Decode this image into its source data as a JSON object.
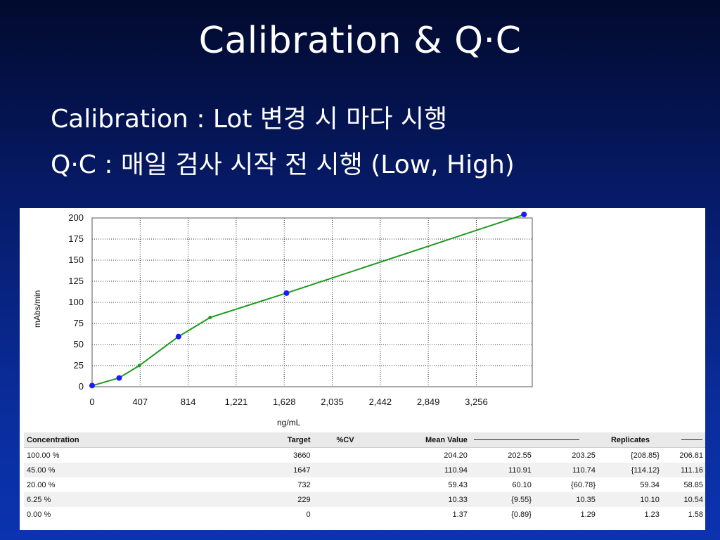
{
  "slide": {
    "title": "Calibration & Q·C",
    "bullets": [
      "Calibration : Lot 변경 시 마다 시행",
      "Q·C : 매일 검사 시작 전 시행 (Low, High)"
    ]
  },
  "chart_data": {
    "type": "scatter",
    "xlabel": "ng/mL",
    "ylabel": "mAbs/min",
    "xlim": [
      0,
      3730
    ],
    "ylim": [
      0,
      200
    ],
    "x_ticks": [
      "0",
      "407",
      "814",
      "1,221",
      "1,628",
      "2,035",
      "2,442",
      "2,849",
      "3,256"
    ],
    "x_tick_values": [
      0,
      407,
      814,
      1221,
      1628,
      2035,
      2442,
      2849,
      3256
    ],
    "y_ticks": [
      "0",
      "25",
      "50",
      "75",
      "100",
      "125",
      "150",
      "175",
      "200"
    ],
    "y_tick_values": [
      0,
      25,
      50,
      75,
      100,
      125,
      150,
      175,
      200
    ],
    "grid": true,
    "series": [
      {
        "color": "#1a1aff",
        "marker": "circle",
        "x": [
          0,
          229,
          732,
          1647,
          3660
        ],
        "y": [
          1.37,
          10.33,
          59.43,
          110.94,
          204.2
        ]
      },
      {
        "color": "#1e9a1e",
        "marker": "line",
        "x": [
          0,
          229,
          400,
          732,
          1000,
          1647,
          3660
        ],
        "y": [
          1.2,
          10.5,
          25,
          59.5,
          82,
          111,
          204
        ]
      }
    ]
  },
  "table": {
    "headers": [
      "Concentration",
      "Target",
      "%CV",
      "Mean Value",
      "Replicates"
    ],
    "rows": [
      {
        "concentration": "100.00 %",
        "target": "3660",
        "cv": "",
        "mean": "204.20",
        "replicates": [
          "202.55",
          "203.25",
          "{208.85}",
          "206.81"
        ]
      },
      {
        "concentration": "45.00 %",
        "target": "1647",
        "cv": "",
        "mean": "110.94",
        "replicates": [
          "110.91",
          "110.74",
          "{114.12}",
          "111.16"
        ]
      },
      {
        "concentration": "20.00 %",
        "target": "732",
        "cv": "",
        "mean": "59.43",
        "replicates": [
          "60.10",
          "{60.78}",
          "59.34",
          "58.85"
        ]
      },
      {
        "concentration": "6.25 %",
        "target": "229",
        "cv": "",
        "mean": "10.33",
        "replicates": [
          "{9.55}",
          "10.35",
          "10.10",
          "10.54"
        ]
      },
      {
        "concentration": "0.00 %",
        "target": "0",
        "cv": "",
        "mean": "1.37",
        "replicates": [
          "{0.89}",
          "1.29",
          "1.23",
          "1.58"
        ]
      }
    ]
  },
  "colors": {
    "background_top": "#020a2e",
    "background_bottom": "#0b33b0",
    "points": "#1a1aff",
    "curve": "#1e9a1e"
  }
}
